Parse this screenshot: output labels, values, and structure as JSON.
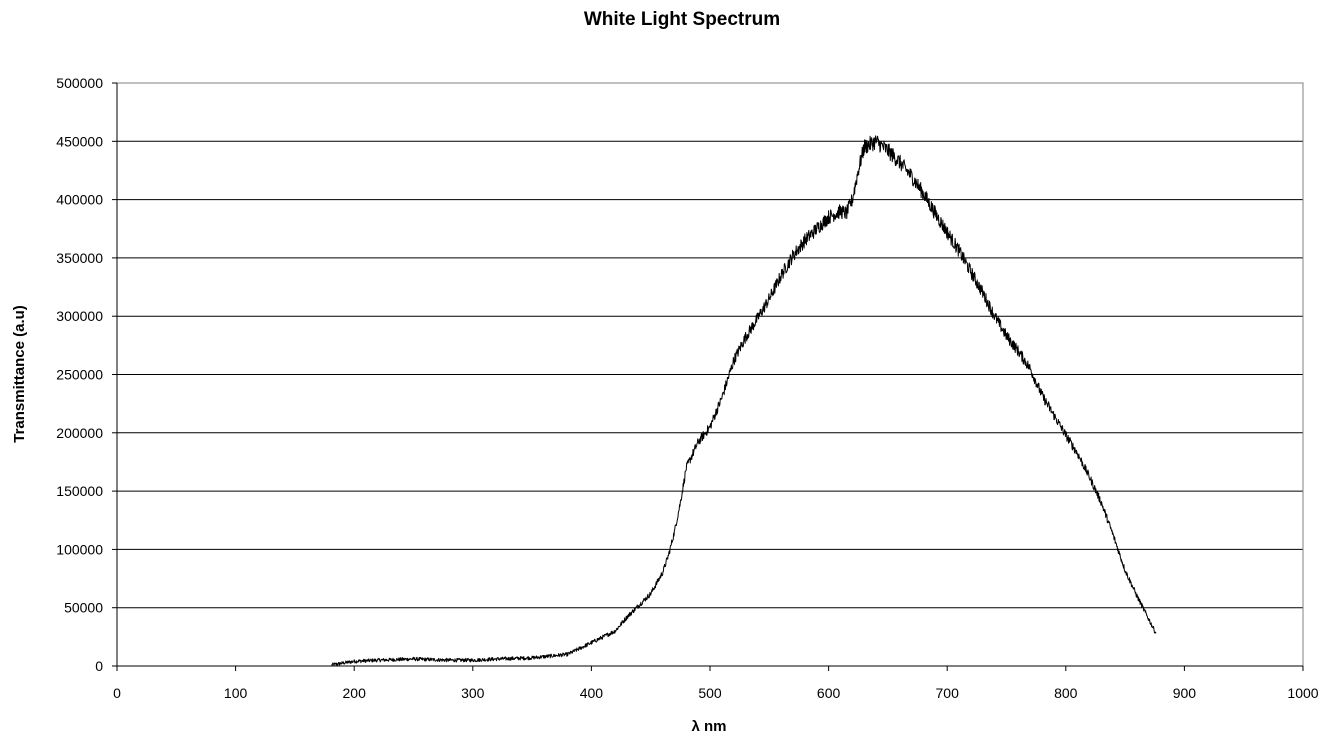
{
  "chart_data": {
    "type": "line",
    "title": "White Light Spectrum",
    "xlabel": "λ nm",
    "ylabel": "Transmittance (a.u)",
    "xlim": [
      0,
      1000
    ],
    "ylim": [
      0,
      500000
    ],
    "xticks": [
      0,
      100,
      200,
      300,
      400,
      500,
      600,
      700,
      800,
      900,
      1000
    ],
    "yticks": [
      0,
      50000,
      100000,
      150000,
      200000,
      250000,
      300000,
      350000,
      400000,
      450000,
      500000
    ],
    "grid": "horizontal",
    "legend": "none",
    "series": [
      {
        "color": "#000000",
        "x": [
          181,
          200,
          220,
          250,
          280,
          300,
          320,
          350,
          380,
          400,
          420,
          430,
          440,
          450,
          460,
          465,
          470,
          475,
          480,
          490,
          500,
          510,
          520,
          530,
          540,
          550,
          560,
          570,
          580,
          590,
          600,
          610,
          615,
          620,
          625,
          630,
          640,
          650,
          660,
          670,
          680,
          690,
          700,
          710,
          720,
          730,
          740,
          750,
          760,
          770,
          780,
          790,
          800,
          810,
          820,
          830,
          840,
          850,
          860,
          870,
          876
        ],
        "y": [
          1000,
          4000,
          5000,
          6000,
          5000,
          5000,
          6000,
          7000,
          10000,
          20000,
          30000,
          42000,
          52000,
          62000,
          80000,
          95000,
          115000,
          140000,
          170000,
          192000,
          205000,
          230000,
          262000,
          282000,
          298000,
          315000,
          335000,
          352000,
          365000,
          375000,
          385000,
          390000,
          388000,
          400000,
          425000,
          445000,
          450000,
          442000,
          432000,
          420000,
          405000,
          388000,
          372000,
          356000,
          338000,
          320000,
          300000,
          283000,
          270000,
          255000,
          232000,
          215000,
          198000,
          182000,
          162000,
          140000,
          112000,
          82000,
          60000,
          40000,
          28000
        ]
      }
    ]
  }
}
